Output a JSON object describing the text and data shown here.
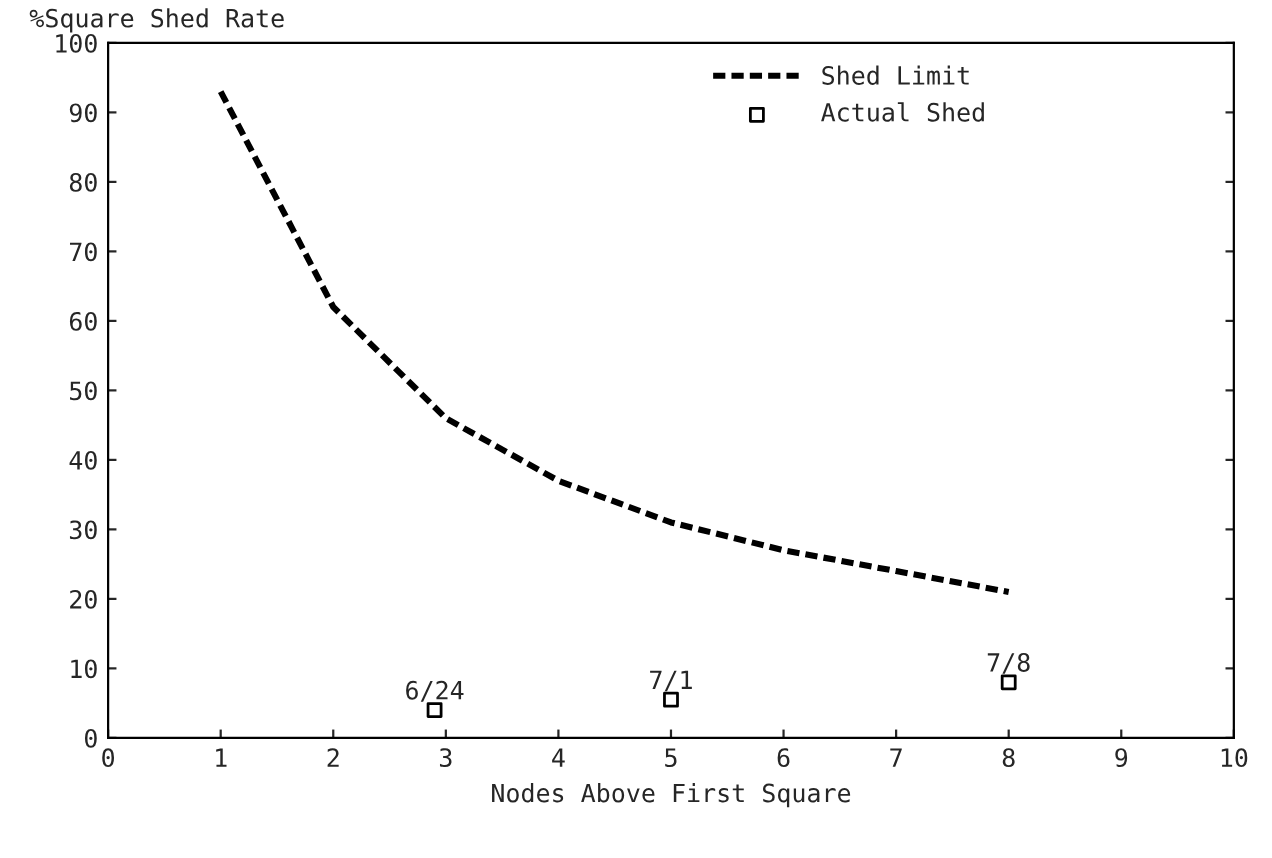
{
  "chart_data": {
    "type": "line",
    "ylabel": "%Square Shed Rate",
    "xlabel": "Nodes Above First Square",
    "series": [
      {
        "name": "Shed Limit",
        "color": "#000000",
        "line_style": "dashed",
        "marker": "none",
        "x": [
          1,
          2,
          3,
          4,
          5,
          6,
          7,
          8
        ],
        "values": [
          93,
          62,
          46,
          37,
          31,
          27,
          24,
          21
        ]
      },
      {
        "name": "Actual Shed",
        "type": "scatter",
        "color": "#000000",
        "marker": "square",
        "x": [
          2.9,
          5,
          8
        ],
        "values": [
          4,
          5.5,
          8
        ]
      }
    ],
    "annotations": [
      {
        "text": "6/24",
        "x": 2.9,
        "y": 4
      },
      {
        "text": "7/1",
        "x": 5,
        "y": 5.5
      },
      {
        "text": "7/8",
        "x": 8,
        "y": 8
      }
    ],
    "xlim": [
      0,
      10
    ],
    "xticks": [
      0,
      1,
      2,
      3,
      4,
      5,
      6,
      7,
      8,
      9,
      10
    ],
    "ylim": [
      0,
      100
    ],
    "yticks": [
      0,
      10,
      20,
      30,
      40,
      50,
      60,
      70,
      80,
      90,
      100
    ],
    "grid": false,
    "legend": "top right"
  }
}
